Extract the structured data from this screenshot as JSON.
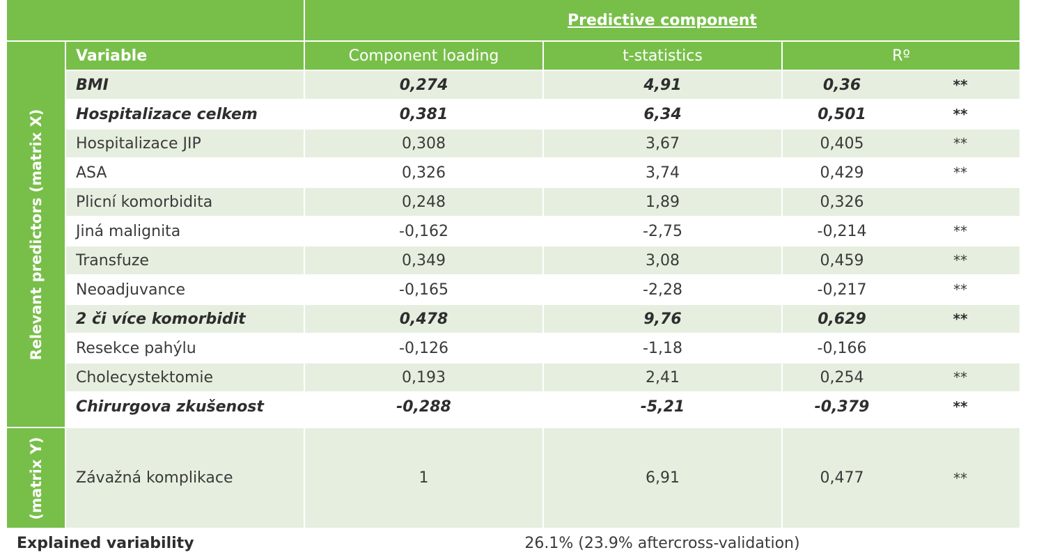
{
  "header": {
    "predictive_component": "Predictive component"
  },
  "columns": {
    "variable": "Variable",
    "component_loading": "Component loading",
    "t_statistics": "t-statistics",
    "r": "Rº"
  },
  "groups": {
    "matrix_x": "Relevant predictors (matrix X)",
    "matrix_y": "(matrix Y)"
  },
  "rows": [
    {
      "variable": "BMI",
      "loading": "0,274",
      "t": "4,91",
      "r": "0,36",
      "sig": "**",
      "bold": true
    },
    {
      "variable": "Hospitalizace celkem",
      "loading": "0,381",
      "t": "6,34",
      "r": "0,501",
      "sig": "**",
      "bold": true
    },
    {
      "variable": "Hospitalizace JIP",
      "loading": "0,308",
      "t": "3,67",
      "r": "0,405",
      "sig": "**",
      "bold": false
    },
    {
      "variable": "ASA",
      "loading": "0,326",
      "t": "3,74",
      "r": "0,429",
      "sig": "**",
      "bold": false
    },
    {
      "variable": "Plicní komorbidita",
      "loading": "0,248",
      "t": "1,89",
      "r": "0,326",
      "sig": "",
      "bold": false
    },
    {
      "variable": "Jiná malignita",
      "loading": "-0,162",
      "t": "-2,75",
      "r": "-0,214",
      "sig": "**",
      "bold": false
    },
    {
      "variable": "Transfuze",
      "loading": "0,349",
      "t": "3,08",
      "r": "0,459",
      "sig": "**",
      "bold": false
    },
    {
      "variable": "Neoadjuvance",
      "loading": "-0,165",
      "t": "-2,28",
      "r": "-0,217",
      "sig": "**",
      "bold": false
    },
    {
      "variable": "2 či více komorbidit",
      "loading": "0,478",
      "t": "9,76",
      "r": "0,629",
      "sig": "**",
      "bold": true
    },
    {
      "variable": "Resekce pahýlu",
      "loading": "-0,126",
      "t": "-1,18",
      "r": "-0,166",
      "sig": "",
      "bold": false
    },
    {
      "variable": "Cholecystektomie",
      "loading": "0,193",
      "t": "2,41",
      "r": "0,254",
      "sig": "**",
      "bold": false
    },
    {
      "variable": "Chirurgova zkušenost",
      "loading": "-0,288",
      "t": "-5,21",
      "r": "-0,379",
      "sig": "**",
      "bold": true
    }
  ],
  "y_row": {
    "variable": "Závažná komplikace",
    "loading": "1",
    "t": "6,91",
    "r": "0,477",
    "sig": "**"
  },
  "footer": {
    "label": "Explained variability",
    "value": "26.1% (23.9% aftercross-validation)"
  },
  "colors": {
    "header_green": "#78bf4a",
    "row_light": "#e6efdf",
    "row_white": "#ffffff",
    "divider": "#ffffff"
  }
}
